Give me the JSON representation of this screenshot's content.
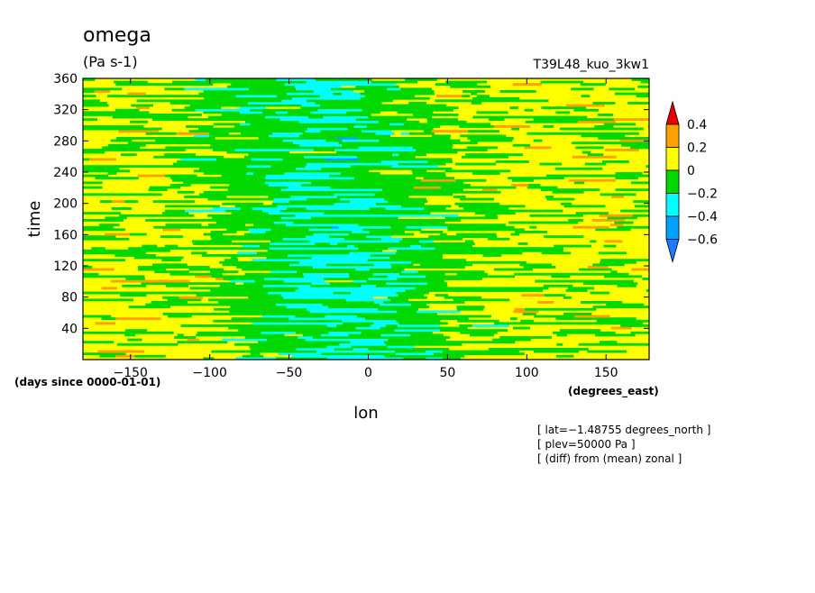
{
  "chart_data": {
    "type": "heatmap",
    "title": "omega",
    "units": "(Pa s-1)",
    "experiment": "T39L48_kuo_3kw1",
    "xlabel": "lon",
    "ylabel": "time",
    "x_units": "(degrees_east)",
    "y_units": "(days since 0000-01-01)",
    "xlim": [
      -180,
      177.1875
    ],
    "ylim": [
      0,
      360
    ],
    "x_ticks": [
      -150,
      -100,
      -50,
      0,
      50,
      100,
      150
    ],
    "y_ticks": [
      40,
      80,
      120,
      160,
      200,
      240,
      280,
      320,
      360
    ],
    "colorbar": {
      "levels": [
        -0.6,
        -0.4,
        -0.2,
        0,
        0.2,
        0.4
      ],
      "labels": [
        "−0.6",
        "−0.4",
        "−0.2",
        "0",
        "0.2",
        "0.4"
      ],
      "colors": [
        "#1f78ff",
        "#00a0ff",
        "#00ffff",
        "#00d800",
        "#ffff00",
        "#ffa000",
        "#e80000"
      ],
      "extend": "both"
    },
    "annotations": [
      "[ lat=−1.48755 degrees_north ]",
      "[ plev=50000 Pa ]",
      "[ (diff) from (mean) zonal ]"
    ],
    "pattern_description_values": {
      "background_value": 0.05,
      "negative_anomaly_band": {
        "lon_center_start": -10,
        "lon_center_end": -40,
        "time_start": 0,
        "time_end": 360,
        "amplitude": -0.25
      }
    }
  }
}
